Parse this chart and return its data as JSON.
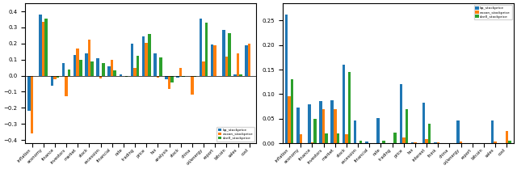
{
  "categories": [
    "inflation",
    "economy",
    "finance",
    "investors",
    "market",
    "stock",
    "recession",
    "financial",
    "rate",
    "trading",
    "price",
    "tax",
    "analysis",
    "stock",
    "china",
    "oil/energy",
    "report",
    "bitcoin",
    "sales",
    "cost"
  ],
  "bp_stockprice": [
    -0.22,
    0.38,
    -0.06,
    0.08,
    0.13,
    0.14,
    0.11,
    0.06,
    0.01,
    0.2,
    0.245,
    0.14,
    -0.02,
    -0.01,
    0.0,
    0.355,
    0.195,
    0.285,
    0.01,
    0.19
  ],
  "exxon_stockprice": [
    -0.36,
    0.335,
    -0.02,
    -0.13,
    0.17,
    0.225,
    -0.015,
    0.1,
    0.0,
    0.05,
    0.205,
    -0.01,
    -0.08,
    0.05,
    -0.12,
    0.09,
    0.19,
    0.12,
    0.14,
    0.2
  ],
  "shell_stockprice": [
    0.0,
    0.355,
    -0.01,
    0.04,
    0.1,
    0.09,
    0.08,
    0.035,
    -0.005,
    0.125,
    0.26,
    0.115,
    -0.04,
    -0.005,
    -0.005,
    0.33,
    0.0,
    0.265,
    0.01,
    0.0
  ],
  "categories2": [
    "inflation",
    "economy",
    "finance",
    "investors",
    "market",
    "stock",
    "recession",
    "financial",
    "rate",
    "trading",
    "price",
    "tax",
    "interest",
    "think",
    "china",
    "oil/energy",
    "report",
    "bitcoin",
    "sales",
    "cost"
  ],
  "bp_stockprice2": [
    0.262,
    0.073,
    0.08,
    0.086,
    0.087,
    0.16,
    0.047,
    0.003,
    0.052,
    0.0,
    0.12,
    0.001,
    0.083,
    0.001,
    0.0,
    0.046,
    0.0,
    0.0,
    0.046,
    0.0
  ],
  "exxon_stockprice2": [
    0.095,
    0.018,
    0.001,
    0.07,
    0.07,
    0.018,
    0.0,
    0.0,
    0.0,
    0.0,
    0.012,
    0.001,
    0.009,
    0.001,
    0.0,
    0.004,
    0.0,
    0.0,
    0.003,
    0.025
  ],
  "shell_stockprice2": [
    0.13,
    0.0,
    0.05,
    0.02,
    0.02,
    0.145,
    0.005,
    0.0,
    0.005,
    0.022,
    0.07,
    0.0,
    0.04,
    0.0,
    0.0,
    0.0,
    0.0,
    0.0,
    0.0,
    0.005
  ],
  "color_bp": "#1f77b4",
  "color_exxon": "#ff7f0e",
  "color_shell": "#2ca02c",
  "legend_labels": [
    "bp_stockprice",
    "exxon_stockprice",
    "shell_stockprice"
  ],
  "fig_width": 6.4,
  "fig_height": 2.09,
  "bar_width": 0.25
}
